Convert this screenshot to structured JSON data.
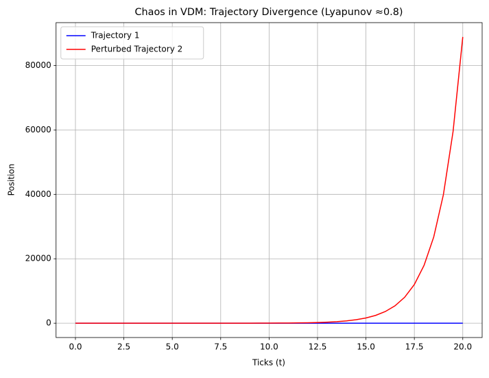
{
  "chart_data": {
    "type": "line",
    "title": "Chaos in VDM: Trajectory Divergence (Lyapunov ≈0.8)",
    "x_label": "Ticks (t)",
    "y_label": "Position",
    "x": [
      0,
      0.5,
      1,
      1.5,
      2,
      2.5,
      3,
      3.5,
      4,
      4.5,
      5,
      5.5,
      6,
      6.5,
      7,
      7.5,
      8,
      8.5,
      9,
      9.5,
      10,
      10.5,
      11,
      11.5,
      12,
      12.5,
      13,
      13.5,
      14,
      14.5,
      15,
      15.5,
      16,
      16.5,
      17,
      17.5,
      18,
      18.5,
      19,
      19.5,
      20
    ],
    "series": [
      {
        "name": "Trajectory 1",
        "color": "#0000ff",
        "values": [
          0,
          0,
          0,
          0,
          0,
          0,
          0,
          0,
          0,
          0,
          0,
          0,
          0,
          0,
          0,
          0,
          0,
          0,
          0,
          0,
          0,
          0,
          0,
          0,
          0,
          0,
          0,
          0,
          0,
          0,
          0,
          0,
          0,
          0,
          0,
          0,
          0,
          0,
          0,
          0,
          0
        ]
      },
      {
        "name": "Perturbed Trajectory 2",
        "color": "#ff0000",
        "values": [
          0.01,
          0.0149,
          0.0223,
          0.0332,
          0.0495,
          0.0739,
          0.11,
          0.164,
          0.245,
          0.366,
          0.546,
          0.815,
          1.215,
          1.813,
          2.704,
          4.03,
          6.02,
          8.98,
          13.4,
          20,
          29.8,
          44.5,
          66.3,
          99,
          148,
          220,
          329,
          490,
          731,
          1091,
          1628,
          2428,
          3622,
          5404,
          8061,
          12026,
          17941,
          26764,
          39928,
          59565,
          88861
        ]
      }
    ],
    "xlim": [
      -1,
      21
    ],
    "xticks": [
      {
        "value": 0,
        "label": "0.0"
      },
      {
        "value": 2.5,
        "label": "2.5"
      },
      {
        "value": 5,
        "label": "5.0"
      },
      {
        "value": 7.5,
        "label": "7.5"
      },
      {
        "value": 10,
        "label": "10.0"
      },
      {
        "value": 12.5,
        "label": "12.5"
      },
      {
        "value": 15,
        "label": "15.0"
      },
      {
        "value": 17.5,
        "label": "17.5"
      },
      {
        "value": 20,
        "label": "20.0"
      }
    ],
    "ylim": [
      -4443,
      93304
    ],
    "yticks": [
      0,
      20000,
      40000,
      60000,
      80000
    ],
    "grid": true,
    "legend": "upper left"
  }
}
